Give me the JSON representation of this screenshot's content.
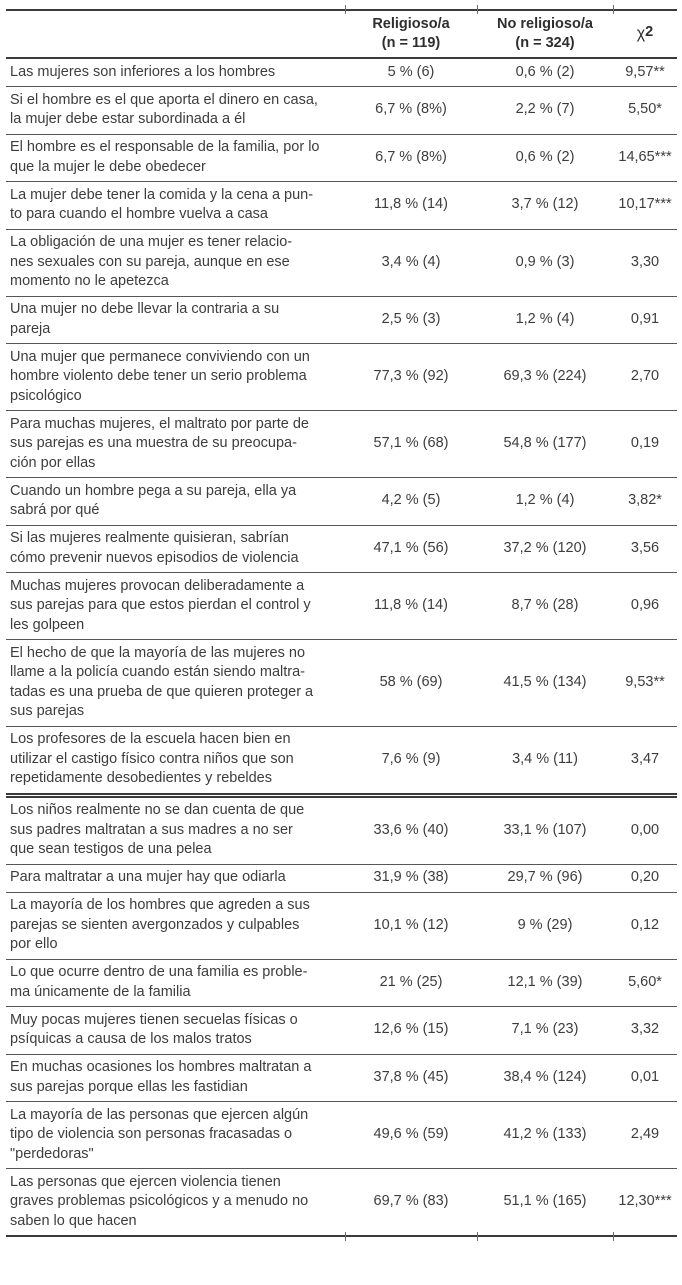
{
  "colors": {
    "text": "#3d3d3d",
    "rule_heavy": "#3a3a3a",
    "rule_light": "#575757",
    "background": "#ffffff"
  },
  "table": {
    "header": {
      "statement_col": "",
      "religioso": "Religioso/a\n(n = 119)",
      "no_religioso": "No religioso/a\n(n = 324)",
      "chi": "χ",
      "chi_exp": "2"
    },
    "rows": [
      {
        "statement": "Las mujeres son inferiores a los hombres",
        "religioso": "5 % (6)",
        "no_religioso": "0,6 % (2)",
        "chi2": "9,57**"
      },
      {
        "statement": "Si el hombre es el que aporta el dinero en casa,\nla mujer debe estar subordinada a él",
        "religioso": "6,7 % (8%)",
        "no_religioso": "2,2 % (7)",
        "chi2": "5,50*"
      },
      {
        "statement": "El hombre es el responsable de la familia, por lo\nque la mujer le debe obedecer",
        "religioso": "6,7 % (8%)",
        "no_religioso": "0,6 % (2)",
        "chi2": "14,65***"
      },
      {
        "statement": "La mujer debe tener la comida y la cena a pun-\nto para cuando el hombre vuelva a casa",
        "religioso": "11,8 % (14)",
        "no_religioso": "3,7 % (12)",
        "chi2": "10,17***"
      },
      {
        "statement": "La obligación de una mujer es tener relacio-\nnes sexuales con su pareja, aunque en ese\nmomento no le apetezca",
        "religioso": "3,4 % (4)",
        "no_religioso": "0,9 % (3)",
        "chi2": "3,30"
      },
      {
        "statement": "Una mujer no debe llevar la contraria a su\npareja",
        "religioso": "2,5 % (3)",
        "no_religioso": "1,2 % (4)",
        "chi2": "0,91"
      },
      {
        "statement": "Una mujer que permanece conviviendo con un\nhombre violento debe tener un serio problema\npsicológico",
        "religioso": "77,3 % (92)",
        "no_religioso": "69,3 % (224)",
        "chi2": "2,70"
      },
      {
        "statement": "Para muchas mujeres, el maltrato por parte de\nsus parejas es una muestra de su preocupa-\nción por ellas",
        "religioso": "57,1 % (68)",
        "no_religioso": "54,8 % (177)",
        "chi2": "0,19"
      },
      {
        "statement": "Cuando un hombre pega a su pareja, ella ya\nsabrá por qué",
        "religioso": "4,2 % (5)",
        "no_religioso": "1,2 % (4)",
        "chi2": "3,82*"
      },
      {
        "statement": "Si las mujeres realmente quisieran, sabrían\ncómo prevenir nuevos episodios de violencia",
        "religioso": "47,1 % (56)",
        "no_religioso": "37,2 % (120)",
        "chi2": "3,56"
      },
      {
        "statement": "Muchas mujeres provocan deliberadamente a\nsus parejas para que estos pierdan el control y\nles golpeen",
        "religioso": "11,8 % (14)",
        "no_religioso": "8,7 % (28)",
        "chi2": "0,96"
      },
      {
        "statement": "El hecho de que la mayoría de las mujeres no\nllame a la policía cuando están siendo maltra-\ntadas es una prueba de que quieren proteger a\nsus parejas",
        "religioso": "58 % (69)",
        "no_religioso": "41,5 % (134)",
        "chi2": "9,53**"
      },
      {
        "statement": "Los profesores de la escuela hacen bien en\nutilizar el castigo físico contra niños que son\nrepetidamente desobedientes y rebeldes",
        "religioso": "7,6 % (9)",
        "no_religioso": "3,4 % (11)",
        "chi2": "3,47"
      },
      {
        "statement": "Los niños realmente no se dan cuenta de que\nsus padres maltratan a sus madres a no ser\nque sean testigos de una pelea",
        "religioso": "33,6 % (40)",
        "no_religioso": "33,1 % (107)",
        "chi2": "0,00"
      },
      {
        "statement": "Para maltratar a una mujer hay que odiarla",
        "religioso": "31,9 % (38)",
        "no_religioso": "29,7 % (96)",
        "chi2": "0,20"
      },
      {
        "statement": "La mayoría de los hombres que agreden a sus\nparejas se sienten avergonzados y culpables\npor ello",
        "religioso": "10,1 % (12)",
        "no_religioso": "9 % (29)",
        "chi2": "0,12"
      },
      {
        "statement": "Lo que ocurre dentro de una familia es proble-\nma únicamente de la familia",
        "religioso": "21 % (25)",
        "no_religioso": "12,1 % (39)",
        "chi2": "5,60*"
      },
      {
        "statement": "Muy pocas mujeres tienen secuelas físicas o\npsíquicas a causa de los malos tratos",
        "religioso": "12,6 % (15)",
        "no_religioso": "7,1 % (23)",
        "chi2": "3,32"
      },
      {
        "statement": "En muchas ocasiones los hombres maltratan a\nsus parejas porque ellas les fastidian",
        "religioso": "37,8 % (45)",
        "no_religioso": "38,4 % (124)",
        "chi2": "0,01"
      },
      {
        "statement": "La mayoría de las personas que ejercen algún\ntipo de violencia son personas fracasadas o\n\"perdedoras\"",
        "religioso": "49,6 % (59)",
        "no_religioso": "41,2 % (133)",
        "chi2": "2,49"
      },
      {
        "statement": "Las personas que ejercen violencia tienen\ngraves problemas psicológicos y a menudo no\nsaben lo que hacen",
        "religioso": "69,7 % (83)",
        "no_religioso": "51,1 % (165)",
        "chi2": "12,30***"
      }
    ],
    "section_break_before_row_index": 13
  }
}
